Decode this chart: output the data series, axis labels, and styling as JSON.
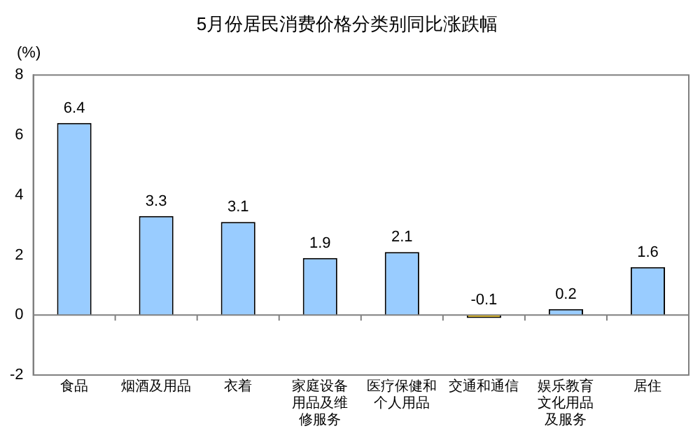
{
  "chart_data": {
    "type": "bar",
    "title": "5月份居民消费价格分类别同比涨跌幅",
    "ylabel": "(%)",
    "categories": [
      "食品",
      "烟酒及用品",
      "衣着",
      "家庭设备用品及维修服务",
      "医疗保健和个人用品",
      "交通和通信",
      "娱乐教育文化用品及服务",
      "居住"
    ],
    "values": [
      6.4,
      3.3,
      3.1,
      1.9,
      2.1,
      -0.1,
      0.2,
      1.6
    ],
    "colors": [
      "#99ccff",
      "#99ccff",
      "#99ccff",
      "#99ccff",
      "#99ccff",
      "#ffcc00",
      "#99ccff",
      "#99ccff"
    ],
    "ylim": [
      -2,
      8
    ],
    "yticks": [
      -2,
      0,
      2,
      4,
      6,
      8
    ],
    "grid": false,
    "legend": false,
    "data_labels": true,
    "ref_lines": [
      {
        "axis": "y",
        "value": 0,
        "color": "#808080"
      }
    ]
  }
}
